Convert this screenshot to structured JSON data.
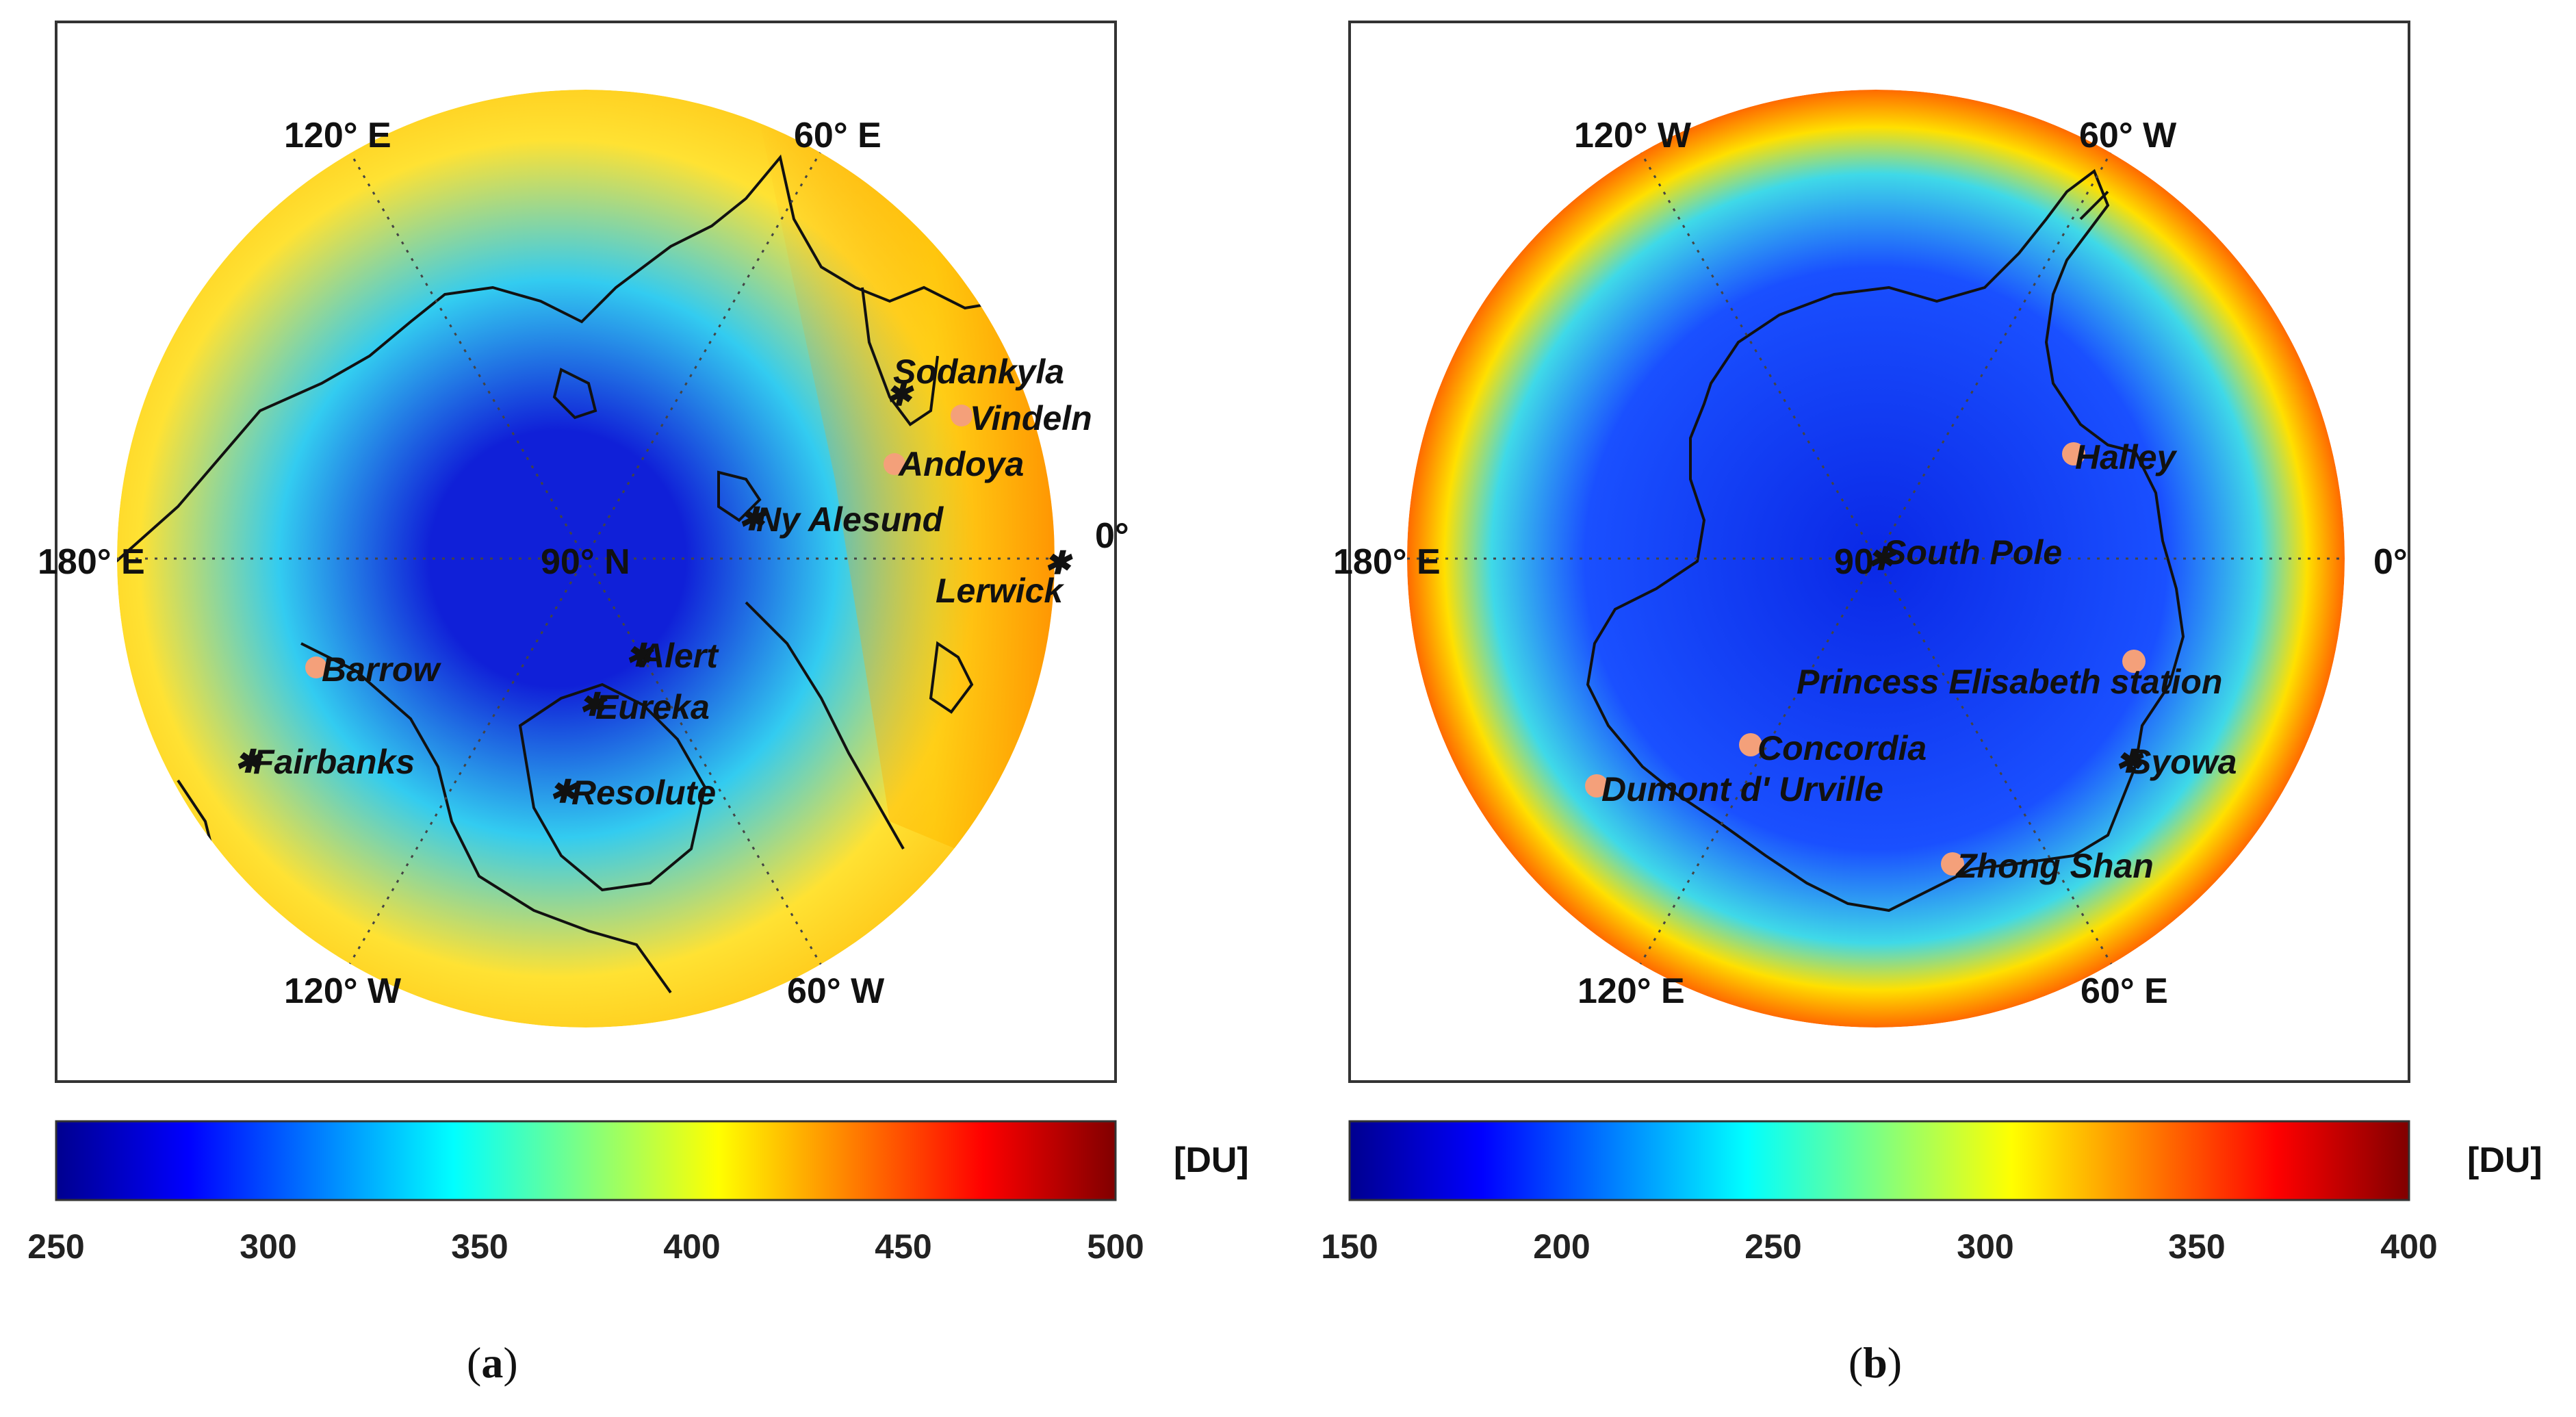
{
  "colors": {
    "colormap": [
      "#00008f",
      "#0000ff",
      "#0080ff",
      "#00ffff",
      "#80ff80",
      "#ffff00",
      "#ff8000",
      "#ff0000",
      "#800000"
    ],
    "marker_star": "#e00000",
    "marker_dot": "#f4a07a",
    "coast": "#111111"
  },
  "panels": [
    {
      "caption_open": "(",
      "caption_letter": "a",
      "caption_close": ")",
      "hemisphere": "north",
      "field_colors": {
        "pole": "#1020d8",
        "ring": "#33ccf0",
        "outer": "#ffe233",
        "edge": "#ffb000"
      },
      "lon_labels": {
        "top_left": "120° E",
        "top_right": "60° E",
        "left": "180° E",
        "center": "90° N",
        "right": "0°",
        "bottom_left": "120° W",
        "bottom_right": "60° W"
      },
      "stations": [
        {
          "name": "Sodankyla",
          "marker": "star"
        },
        {
          "name": "Vindeln",
          "marker": "dot"
        },
        {
          "name": "Andoya",
          "marker": "dot"
        },
        {
          "name": "Ny Alesund",
          "marker": "star"
        },
        {
          "name": "Lerwick",
          "marker": "star"
        },
        {
          "name": "Barrow",
          "marker": "dot"
        },
        {
          "name": "Alert",
          "marker": "star"
        },
        {
          "name": "Eureka",
          "marker": "star"
        },
        {
          "name": "Fairbanks",
          "marker": "star"
        },
        {
          "name": "Resolute",
          "marker": "star"
        }
      ],
      "colorbar": {
        "unit": "[DU]",
        "min": 250,
        "max": 500,
        "ticks": [
          "250",
          "300",
          "350",
          "400",
          "450",
          "500"
        ]
      }
    },
    {
      "caption_open": "(",
      "caption_letter": "b",
      "caption_close": ")",
      "hemisphere": "south",
      "field_colors": {
        "pole": "#0a28e6",
        "ring": "#1a50ff",
        "outer": "#3fd9e8",
        "edge": "#ff6a00"
      },
      "lon_labels": {
        "top_left": "120° W",
        "top_right": "60° W",
        "left": "180° E",
        "center": "90",
        "right": "0°",
        "bottom_left": "120° E",
        "bottom_right": "60° E"
      },
      "stations": [
        {
          "name": "Halley",
          "marker": "dot"
        },
        {
          "name": "South Pole",
          "marker": "star"
        },
        {
          "name": "Princess Elisabeth station",
          "marker": "dot"
        },
        {
          "name": "Concordia",
          "marker": "dot"
        },
        {
          "name": "Syowa",
          "marker": "star"
        },
        {
          "name": "Dumont d' Urville",
          "marker": "dot"
        },
        {
          "name": "Zhong Shan",
          "marker": "dot"
        }
      ],
      "colorbar": {
        "unit": "[DU]",
        "min": 150,
        "max": 400,
        "ticks": [
          "150",
          "200",
          "250",
          "300",
          "350",
          "400"
        ]
      }
    }
  ]
}
